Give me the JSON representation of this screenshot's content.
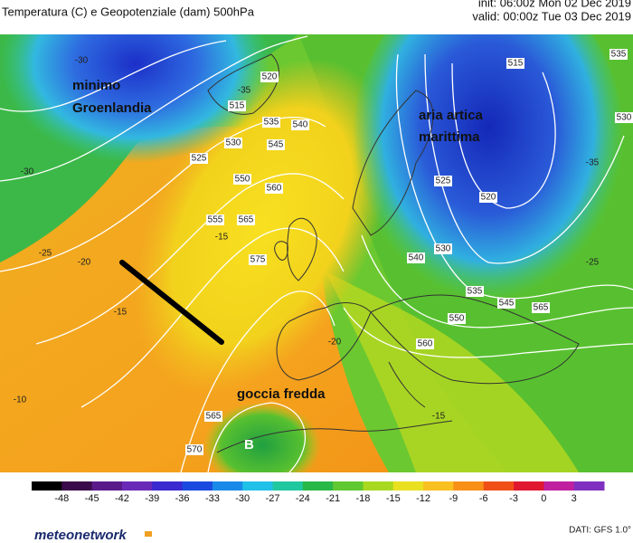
{
  "header": {
    "title": "Temperatura (C) e Geopotenziale (dam) 500hPa",
    "init": "init: 06:00z Mon 02 Dec 2019",
    "valid": "valid: 00:00z Tue 03 Dec 2019"
  },
  "annotations": [
    "minimo",
    "Groenlandia",
    "aria artica",
    "marittima",
    "goccia fredda",
    "B"
  ],
  "contour_labels": [
    "525",
    "535",
    "540",
    "545",
    "530",
    "550",
    "560",
    "555",
    "565",
    "575",
    "520",
    "515",
    "520",
    "525",
    "530",
    "535",
    "540",
    "545",
    "550",
    "560",
    "565",
    "515",
    "530",
    "535",
    "565",
    "570",
    "-35",
    "-30",
    "-25",
    "-20",
    "-15",
    "-15",
    "-10",
    "-20",
    "-15",
    "-25",
    "-35",
    "-30"
  ],
  "colorbar": {
    "ticks": [
      -48,
      -45,
      -42,
      -39,
      -36,
      -33,
      -30,
      -27,
      -24,
      -21,
      -18,
      -15,
      -12,
      -9,
      -6,
      -3,
      0,
      3
    ]
  },
  "footer": {
    "brand": "meteonetwork",
    "source": "DATI: GFS 1.0°"
  }
}
